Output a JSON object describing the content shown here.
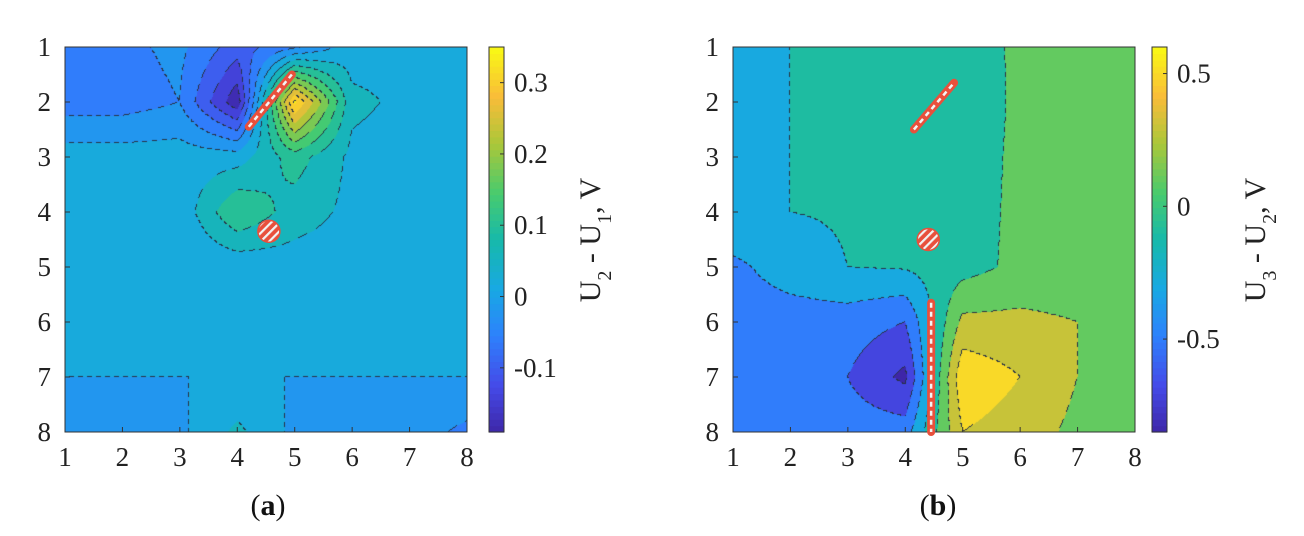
{
  "chart_data": [
    {
      "type": "heatmap",
      "panel_label": "a",
      "x_ticks": [
        1,
        2,
        3,
        4,
        5,
        6,
        7,
        8
      ],
      "y_ticks": [
        1,
        2,
        3,
        4,
        5,
        6,
        7,
        8
      ],
      "xlim": [
        1,
        8
      ],
      "ylim": [
        1,
        8
      ],
      "y_reversed": true,
      "colorbar": {
        "label": "U₂ - U₁, V",
        "label_parts": [
          "U",
          "2",
          " - U",
          "1",
          ", V"
        ],
        "range": [
          -0.19,
          0.35
        ],
        "ticks": [
          -0.1,
          0,
          0.1,
          0.2,
          0.3
        ],
        "tick_labels": [
          "-0.1",
          "0",
          "0.1",
          "0.2",
          "0.3"
        ]
      },
      "grid": [
        [
          -0.07,
          -0.05,
          -0.03,
          -0.1,
          -0.05,
          0.02,
          0.03,
          0.03
        ],
        [
          -0.06,
          -0.06,
          -0.04,
          -0.19,
          0.33,
          0.05,
          0.03,
          0.02
        ],
        [
          0.02,
          0.02,
          0.02,
          0.02,
          0.1,
          0.03,
          0.02,
          0.02
        ],
        [
          0.01,
          0.01,
          0.01,
          0.12,
          0.06,
          0.03,
          0.02,
          0.02
        ],
        [
          0.0,
          0.0,
          0.0,
          0.01,
          0.02,
          0.02,
          0.02,
          0.02
        ],
        [
          0.0,
          0.0,
          0.0,
          0.0,
          0.0,
          0.0,
          0.01,
          0.02
        ],
        [
          0.0,
          0.0,
          0.0,
          0.0,
          0.0,
          0.0,
          0.0,
          0.0
        ],
        [
          -0.01,
          -0.01,
          -0.01,
          0.05,
          -0.01,
          -0.01,
          -0.02,
          -0.05
        ]
      ],
      "contour_step": 0.04,
      "markers": [
        {
          "shape": "line",
          "from": [
            4.2,
            2.45
          ],
          "to": [
            4.95,
            1.5
          ]
        },
        {
          "shape": "circle",
          "at": [
            4.55,
            4.35
          ]
        }
      ]
    },
    {
      "type": "heatmap",
      "panel_label": "b",
      "x_ticks": [
        1,
        2,
        3,
        4,
        5,
        6,
        7,
        8
      ],
      "y_ticks": [
        1,
        2,
        3,
        4,
        5,
        6,
        7,
        8
      ],
      "xlim": [
        1,
        8
      ],
      "ylim": [
        1,
        8
      ],
      "y_reversed": true,
      "colorbar": {
        "label": "U₃ - U₂, V",
        "label_parts": [
          "U",
          "3",
          " - U",
          "2",
          ", V"
        ],
        "range": [
          -0.85,
          0.6
        ],
        "ticks": [
          -0.5,
          0,
          0.5
        ],
        "tick_labels": [
          "-0.5",
          "0",
          "0.5"
        ]
      },
      "grid": [
        [
          -0.22,
          -0.2,
          -0.18,
          -0.18,
          -0.14,
          0.05,
          0.07,
          0.07
        ],
        [
          -0.22,
          -0.2,
          -0.18,
          -0.18,
          -0.16,
          0.05,
          0.07,
          0.07
        ],
        [
          -0.22,
          -0.2,
          -0.18,
          -0.18,
          -0.12,
          0.05,
          0.07,
          0.07
        ],
        [
          -0.2,
          -0.2,
          -0.18,
          -0.18,
          -0.1,
          0.05,
          0.07,
          0.07
        ],
        [
          -0.45,
          -0.3,
          -0.2,
          -0.18,
          -0.08,
          0.05,
          0.07,
          0.07
        ],
        [
          -0.5,
          -0.5,
          -0.5,
          -0.6,
          0.25,
          0.25,
          0.2,
          0.07
        ],
        [
          -0.5,
          -0.5,
          -0.6,
          -0.85,
          0.55,
          0.4,
          0.2,
          0.08
        ],
        [
          -0.5,
          -0.5,
          -0.5,
          -0.5,
          0.4,
          0.3,
          0.15,
          0.2
        ]
      ],
      "contour_step": 0.2,
      "markers": [
        {
          "shape": "line",
          "from": [
            4.15,
            2.5
          ],
          "to": [
            4.85,
            1.65
          ]
        },
        {
          "shape": "circle",
          "at": [
            4.4,
            4.5
          ]
        },
        {
          "shape": "vertical",
          "from": [
            4.45,
            5.65
          ],
          "to": [
            4.45,
            8
          ]
        }
      ]
    }
  ]
}
